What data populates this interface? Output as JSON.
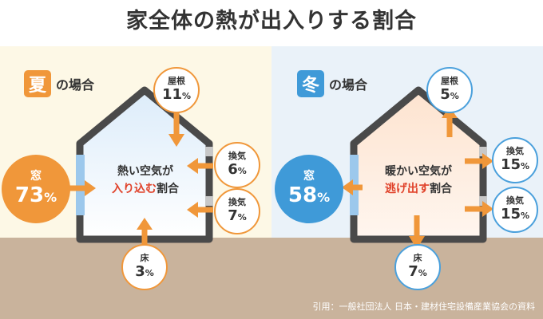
{
  "title": "家全体の熱が出入りする割合",
  "summer": {
    "badge": "夏",
    "label": "の場合",
    "badge_color": "#f0973a",
    "inside_line1": "熱い空気が",
    "inside_highlight": "入り込む",
    "inside_suffix": "割合",
    "window": {
      "label": "窓",
      "value": "73",
      "unit": "%"
    },
    "roof": {
      "label": "屋根",
      "value": "11",
      "unit": "%"
    },
    "vent1": {
      "label": "換気",
      "value": "6",
      "unit": "%"
    },
    "vent2": {
      "label": "換気",
      "value": "7",
      "unit": "%"
    },
    "floor": {
      "label": "床",
      "value": "3",
      "unit": "%"
    }
  },
  "winter": {
    "badge": "冬",
    "label": "の場合",
    "badge_color": "#3f9ad8",
    "inside_line1": "暖かい空気が",
    "inside_highlight": "逃げ出す",
    "inside_suffix": "割合",
    "window": {
      "label": "窓",
      "value": "58",
      "unit": "%"
    },
    "roof": {
      "label": "屋根",
      "value": "5",
      "unit": "%"
    },
    "vent1": {
      "label": "換気",
      "value": "15",
      "unit": "%"
    },
    "vent2": {
      "label": "換気",
      "value": "15",
      "unit": "%"
    },
    "floor": {
      "label": "床",
      "value": "7",
      "unit": "%"
    }
  },
  "source": "引用：一般社団法人 日本・建材住宅設備産業協会の資料",
  "colors": {
    "orange": "#f0973a",
    "blue": "#3f9ad8",
    "house_outline": "#4a4a4a",
    "highlight": "#e0422a"
  }
}
